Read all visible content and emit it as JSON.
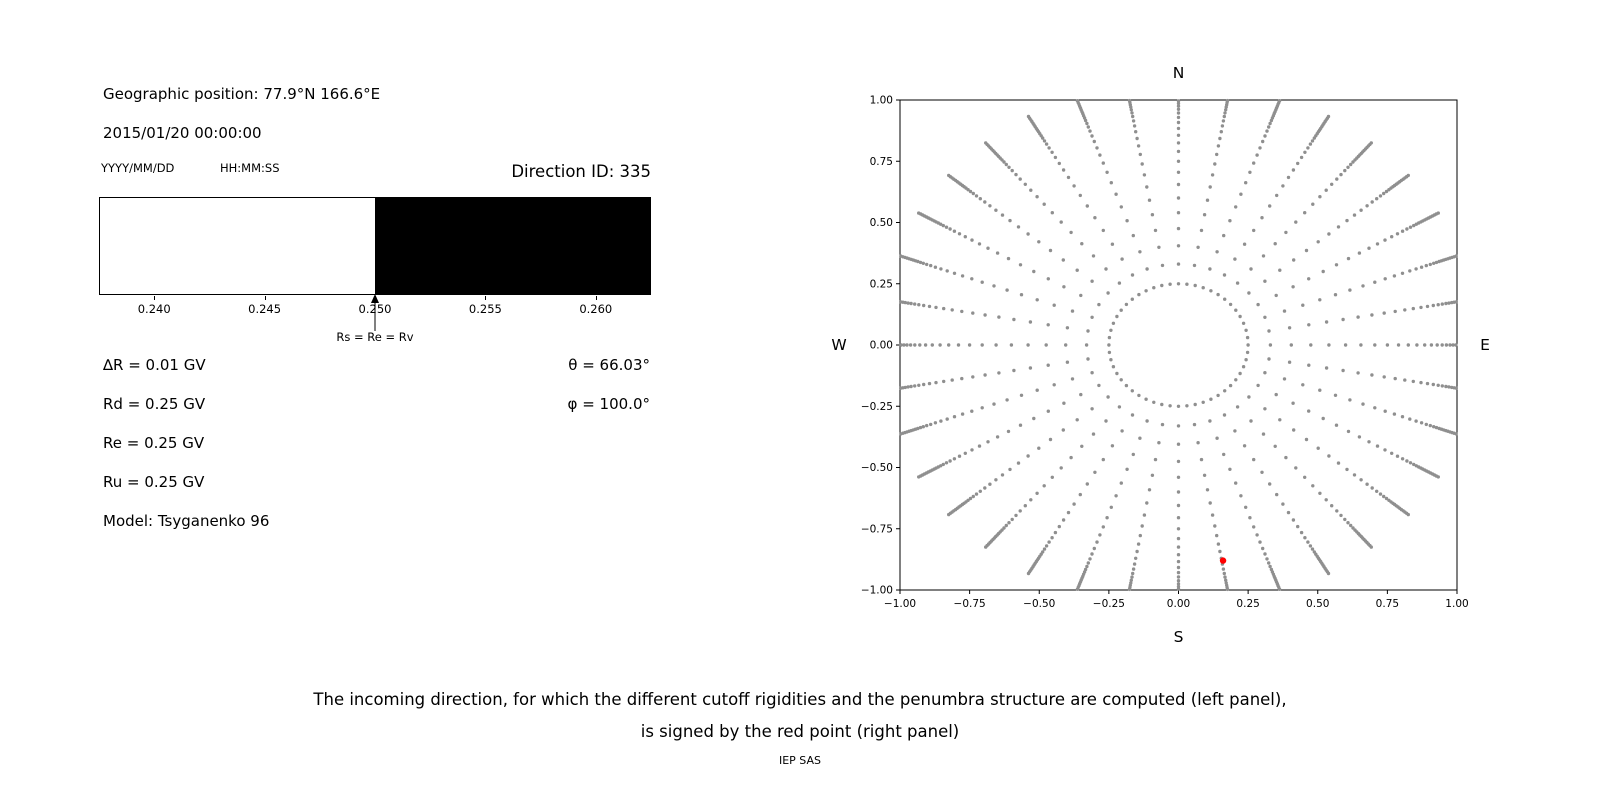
{
  "left_panel": {
    "geo_position": "Geographic position: 77.9°N 166.6°E",
    "datetime": "2015/01/20 00:00:00",
    "date_format_label": "YYYY/MM/DD",
    "time_format_label": "HH:MM:SS",
    "direction_id": "Direction ID: 335",
    "params": [
      "∆R = 0.01 GV",
      "Rd = 0.25 GV",
      "Re = 0.25 GV",
      "Ru = 0.25 GV",
      "Model: Tsyganenko 96"
    ],
    "angles": [
      "θ = 66.03°",
      "φ = 100.0°"
    ]
  },
  "caption": {
    "line1": "The incoming direction, for which the different cutoff rigidities and the penumbra structure are computed (left panel),",
    "line2": "is signed by the red point (right panel)",
    "credit": "IEP SAS"
  },
  "chart_data": [
    {
      "type": "bar",
      "title": "Penumbra structure",
      "x_range": [
        0.2375,
        0.2625
      ],
      "segments": [
        {
          "from": 0.2375,
          "to": 0.25,
          "color": "#ffffff"
        },
        {
          "from": 0.25,
          "to": 0.2625,
          "color": "#000000"
        }
      ],
      "tick_values": [
        0.24,
        0.245,
        0.25,
        0.255,
        0.26
      ],
      "tick_labels": [
        "0.240",
        "0.245",
        "0.250",
        "0.255",
        "0.260"
      ],
      "annotation": {
        "x": 0.25,
        "label": "Rs = Re = Rv"
      }
    },
    {
      "type": "scatter",
      "title": "Incoming directions sky map",
      "xlim": [
        -1,
        1
      ],
      "ylim": [
        -1,
        1
      ],
      "x_tick_values": [
        -1,
        -0.75,
        -0.5,
        -0.25,
        0,
        0.25,
        0.5,
        0.75,
        1
      ],
      "x_tick_labels": [
        "−1.00",
        "−0.75",
        "−0.50",
        "−0.25",
        "0.00",
        "0.25",
        "0.50",
        "0.75",
        "1.00"
      ],
      "y_tick_values": [
        1,
        0.75,
        0.5,
        0.25,
        0,
        -0.25,
        -0.5,
        -0.75,
        -1
      ],
      "y_tick_labels": [
        "1.00",
        "0.75",
        "0.50",
        "0.25",
        "0.00",
        "−0.25",
        "−0.50",
        "−0.75",
        "−1.00"
      ],
      "compass_labels": {
        "top": "N",
        "bottom": "S",
        "left": "W",
        "right": "E"
      },
      "grid_dots": {
        "azimuth_count": 36,
        "spoke_radii": [
          0.33,
          0.405,
          0.475,
          0.54,
          0.6,
          0.655,
          0.705,
          0.75,
          0.79,
          0.825,
          0.856,
          0.884,
          0.908,
          0.929,
          0.947,
          0.962,
          0.975,
          0.986,
          0.996,
          1.005,
          1.013,
          1.021,
          1.029,
          1.037,
          1.045,
          1.053,
          1.061,
          1.069,
          1.077
        ],
        "inner_ring": {
          "radius": 0.25,
          "count": 52
        },
        "color": "#8f8f8f"
      },
      "red_point": {
        "x": 0.16,
        "y": -0.88,
        "color": "#ff0000"
      }
    }
  ]
}
